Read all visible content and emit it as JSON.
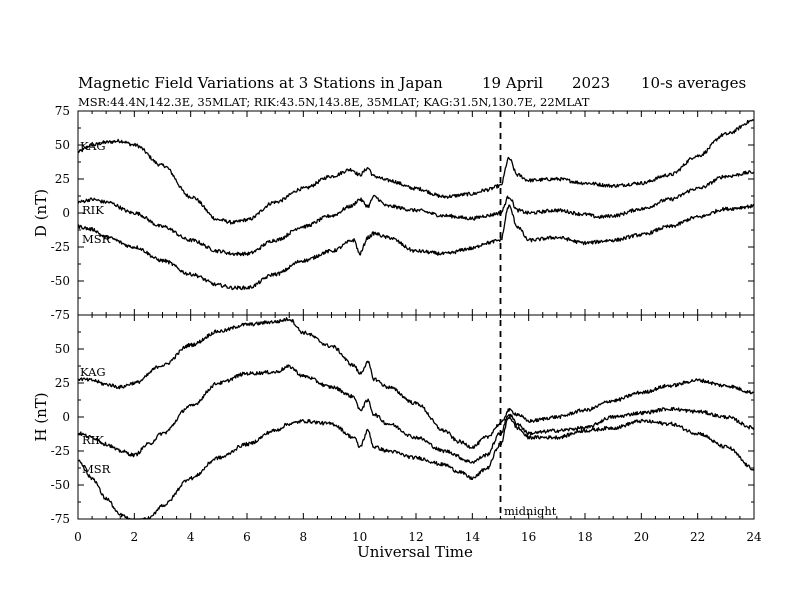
{
  "chart_data": {
    "type": "line",
    "title": "Magnetic Field Variations at 3 Stations in Japan",
    "date": "19  April",
    "year": "2023",
    "averaging": "10-s averages",
    "subtitle": "MSR:44.4N,142.3E, 35MLAT;  RIK:43.5N,143.8E, 35MLAT;  KAG:31.5N,130.7E, 22MLAT",
    "xlabel": "Universal Time",
    "xlim": [
      0,
      24
    ],
    "xticks": [
      0,
      2,
      4,
      6,
      8,
      10,
      12,
      14,
      16,
      18,
      20,
      22,
      24
    ],
    "midnight": {
      "x": 15,
      "label": "midnight"
    },
    "panels": [
      {
        "ylabel": "D (nT)",
        "ylim": [
          -75,
          75
        ],
        "yticks": [
          75,
          50,
          25,
          0,
          -25,
          -50,
          -75
        ],
        "series": [
          {
            "name": "KAG",
            "x": [
              0,
              0.5,
              1,
              1.5,
              2,
              3,
              4,
              5,
              5.5,
              6,
              7,
              8,
              9,
              9.7,
              10,
              10.3,
              10.5,
              11,
              12,
              13,
              14,
              14.5,
              15,
              15.3,
              15.6,
              16,
              17,
              18,
              19,
              20,
              21,
              22,
              23,
              24
            ],
            "values": [
              45,
              50,
              52,
              53,
              50,
              35,
              12,
              -5,
              -7,
              -5,
              8,
              18,
              27,
              32,
              28,
              33,
              27,
              24,
              18,
              12,
              14,
              17,
              20,
              40,
              28,
              24,
              25,
              22,
              20,
              22,
              28,
              42,
              58,
              68
            ]
          },
          {
            "name": "RIK",
            "x": [
              0,
              0.5,
              1,
              2,
              3,
              4,
              5,
              5.5,
              6,
              7,
              8,
              9,
              9.7,
              10,
              10.3,
              10.5,
              11,
              12,
              13,
              14,
              14.5,
              15,
              15.3,
              15.6,
              16,
              17,
              18,
              18.5,
              19,
              20,
              21,
              22,
              23,
              24
            ],
            "values": [
              8,
              10,
              8,
              0,
              -10,
              -20,
              -28,
              -30,
              -30,
              -20,
              -10,
              -2,
              5,
              10,
              5,
              12,
              5,
              2,
              -2,
              -4,
              -2,
              0,
              12,
              2,
              0,
              2,
              -1,
              -3,
              -2,
              3,
              10,
              18,
              27,
              30
            ]
          },
          {
            "name": "MSR",
            "x": [
              0,
              0.5,
              1,
              2,
              3,
              4,
              5,
              5.5,
              6,
              7,
              8,
              9,
              9.8,
              10,
              10.3,
              10.5,
              11,
              12,
              13,
              14,
              14.5,
              15,
              15.3,
              15.6,
              16,
              17,
              18,
              19,
              20,
              21,
              22,
              23,
              24
            ],
            "values": [
              -10,
              -12,
              -18,
              -25,
              -35,
              -45,
              -53,
              -55,
              -55,
              -45,
              -35,
              -28,
              -20,
              -30,
              -18,
              -15,
              -18,
              -28,
              -30,
              -26,
              -22,
              -20,
              5,
              -10,
              -20,
              -18,
              -22,
              -20,
              -16,
              -10,
              -3,
              3,
              5
            ]
          }
        ]
      },
      {
        "ylabel": "H (nT)",
        "ylim": [
          -75,
          75
        ],
        "yticks": [
          75,
          50,
          25,
          0,
          -25,
          -50,
          -75
        ],
        "series": [
          {
            "name": "KAG",
            "x": [
              0,
              0.5,
              1,
              1.5,
              2,
              3,
              4,
              5,
              6,
              7,
              7.5,
              8,
              9,
              9.8,
              10,
              10.3,
              10.5,
              11,
              12,
              13,
              13.5,
              14,
              14.5,
              15,
              15.3,
              15.6,
              16,
              17,
              18,
              19,
              20,
              21,
              22,
              23,
              24
            ],
            "values": [
              28,
              27,
              24,
              22,
              25,
              38,
              53,
              63,
              68,
              70,
              72,
              62,
              52,
              38,
              32,
              40,
              28,
              22,
              10,
              -10,
              -18,
              -22,
              -15,
              -5,
              5,
              2,
              -3,
              0,
              5,
              12,
              18,
              23,
              27,
              23,
              18
            ]
          },
          {
            "name": "RIK",
            "x": [
              0,
              0.5,
              1,
              1.5,
              2,
              2.5,
              3,
              4,
              5,
              6,
              7,
              7.5,
              8,
              9,
              9.8,
              10,
              10.3,
              10.5,
              11,
              12,
              13,
              14,
              14.5,
              15,
              15.3,
              15.6,
              16,
              17,
              18,
              19,
              20,
              21,
              22,
              23,
              24
            ],
            "values": [
              -12,
              -15,
              -20,
              -25,
              -28,
              -20,
              -12,
              8,
              25,
              32,
              33,
              37,
              30,
              22,
              15,
              5,
              12,
              2,
              -5,
              -15,
              -25,
              -33,
              -28,
              -12,
              2,
              -5,
              -12,
              -10,
              -8,
              0,
              3,
              6,
              4,
              0,
              -8
            ]
          },
          {
            "name": "MSR",
            "x": [
              0,
              0.5,
              1,
              1.5,
              2,
              2.5,
              3,
              4,
              5,
              6,
              7,
              7.5,
              8,
              9,
              9.8,
              10,
              10.3,
              10.5,
              11,
              12,
              13,
              13.5,
              14,
              14.5,
              15,
              15.3,
              15.6,
              16,
              17,
              18,
              19,
              20,
              21,
              22,
              23,
              24
            ],
            "values": [
              -32,
              -45,
              -60,
              -72,
              -77,
              -75,
              -65,
              -45,
              -30,
              -20,
              -10,
              -5,
              -3,
              -5,
              -15,
              -22,
              -10,
              -22,
              -25,
              -30,
              -35,
              -40,
              -45,
              -38,
              -20,
              0,
              -8,
              -15,
              -15,
              -10,
              -8,
              -3,
              -5,
              -12,
              -22,
              -38
            ]
          }
        ]
      }
    ]
  }
}
